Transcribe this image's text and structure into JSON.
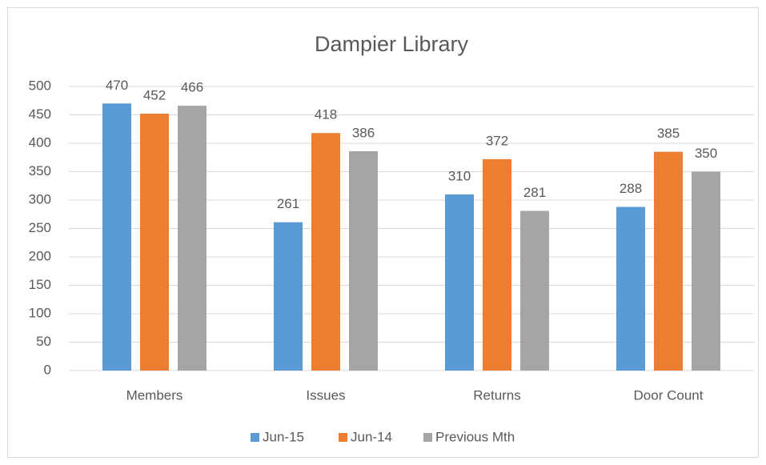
{
  "chart_data": {
    "type": "bar",
    "title": "Dampier Library",
    "categories": [
      "Members",
      "Issues",
      "Returns",
      "Door Count"
    ],
    "series": [
      {
        "name": "Jun-15",
        "color": "#5b9bd5",
        "values": [
          470,
          261,
          310,
          288
        ]
      },
      {
        "name": "Jun-14",
        "color": "#ed7d31",
        "values": [
          452,
          418,
          372,
          385
        ]
      },
      {
        "name": "Previous Mth",
        "color": "#a5a5a5",
        "values": [
          466,
          386,
          281,
          350
        ]
      }
    ],
    "ylim": [
      0,
      500
    ],
    "yticks": [
      0,
      50,
      100,
      150,
      200,
      250,
      300,
      350,
      400,
      450,
      500
    ],
    "grid": true,
    "legend": "bottom"
  }
}
